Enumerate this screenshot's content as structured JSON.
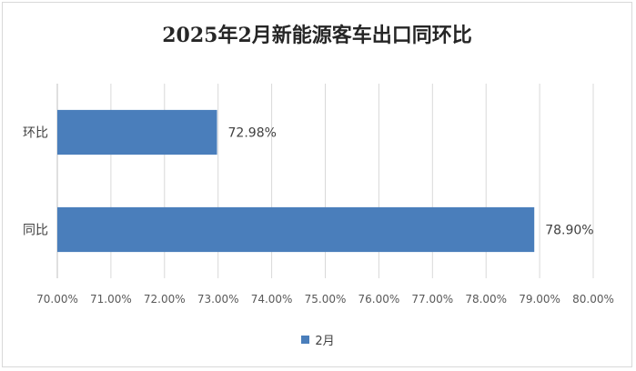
{
  "chart_data": {
    "type": "bar",
    "orientation": "horizontal",
    "title": "2025年2月新能源客车出口同环比",
    "categories": [
      "同比",
      "环比"
    ],
    "series": [
      {
        "name": "2月",
        "values": [
          78.9,
          72.98
        ],
        "color": "#4a7ebb"
      }
    ],
    "data_labels": [
      "78.90%",
      "72.98%"
    ],
    "xlim": [
      70,
      80
    ],
    "x_ticks": [
      "70.00%",
      "71.00%",
      "72.00%",
      "73.00%",
      "74.00%",
      "75.00%",
      "76.00%",
      "77.00%",
      "78.00%",
      "79.00%",
      "80.00%"
    ],
    "grid": true,
    "legend_position": "bottom"
  }
}
